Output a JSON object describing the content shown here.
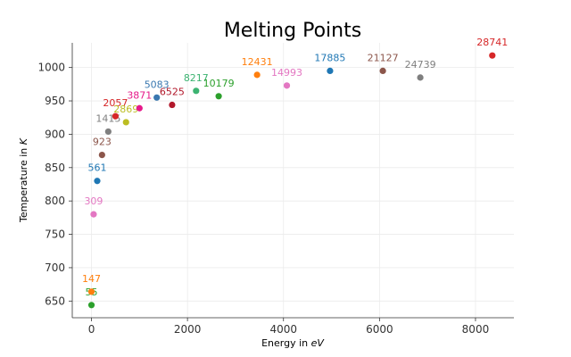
{
  "chart_data": {
    "type": "scatter",
    "title": "Melting Points",
    "xlabel": "Energy in",
    "xlabel_unit": "eV",
    "ylabel": "Temperature in",
    "ylabel_unit": "K",
    "xlim": [
      -400,
      8800
    ],
    "ylim": [
      625,
      1037
    ],
    "xticks": [
      0,
      2000,
      4000,
      6000,
      8000
    ],
    "xtick_labels": [
      "0",
      "2000",
      "4000",
      "6000",
      "8000"
    ],
    "yticks": [
      650,
      700,
      750,
      800,
      850,
      900,
      950,
      1000
    ],
    "ytick_labels": [
      "650",
      "700",
      "750",
      "800",
      "850",
      "900",
      "950",
      "1000"
    ],
    "grid": true,
    "points": [
      {
        "x": 0,
        "y": 644,
        "label": "55",
        "color": "#2ca02c"
      },
      {
        "x": 0,
        "y": 664,
        "label": "147",
        "color": "#ff7f0e"
      },
      {
        "x": 45,
        "y": 780,
        "label": "309",
        "color": "#e377c2"
      },
      {
        "x": 120,
        "y": 830,
        "label": "561",
        "color": "#1f77b4"
      },
      {
        "x": 220,
        "y": 869,
        "label": "923",
        "color": "#8c564b"
      },
      {
        "x": 350,
        "y": 904,
        "label": "1415",
        "color": "#7f7f7f"
      },
      {
        "x": 500,
        "y": 927,
        "label": "2057",
        "color": "#d62728"
      },
      {
        "x": 720,
        "y": 918,
        "label": "2869",
        "color": "#bcbd22"
      },
      {
        "x": 1000,
        "y": 939,
        "label": "3871",
        "color": "#e6198a"
      },
      {
        "x": 1360,
        "y": 955,
        "label": "5083",
        "color": "#3a78b0"
      },
      {
        "x": 1680,
        "y": 944,
        "label": "6525",
        "color": "#b2182b"
      },
      {
        "x": 2180,
        "y": 965,
        "label": "8217",
        "color": "#3cb371"
      },
      {
        "x": 2650,
        "y": 957,
        "label": "10179",
        "color": "#2ca02c"
      },
      {
        "x": 3450,
        "y": 989,
        "label": "12431",
        "color": "#ff7f0e"
      },
      {
        "x": 4070,
        "y": 973,
        "label": "14993",
        "color": "#e377c2"
      },
      {
        "x": 4970,
        "y": 995,
        "label": "17885",
        "color": "#1f77b4"
      },
      {
        "x": 6070,
        "y": 995,
        "label": "21127",
        "color": "#8c564b"
      },
      {
        "x": 6850,
        "y": 985,
        "label": "24739",
        "color": "#7f7f7f"
      },
      {
        "x": 8350,
        "y": 1018,
        "label": "28741",
        "color": "#d62728"
      }
    ]
  }
}
